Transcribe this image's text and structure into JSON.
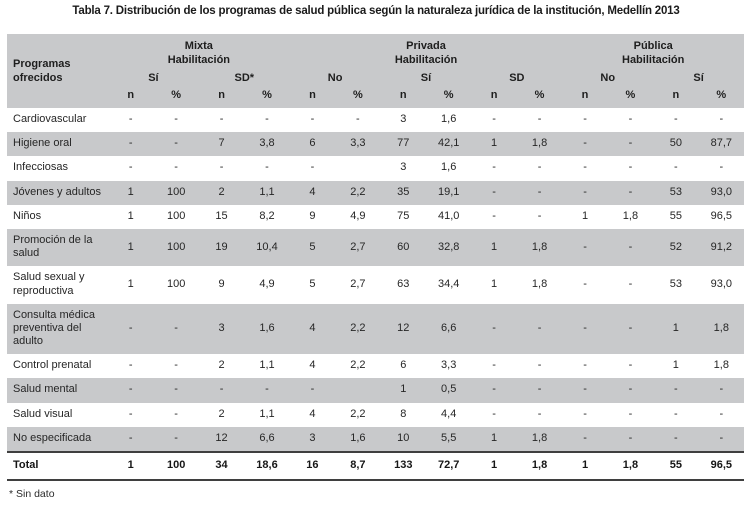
{
  "title": "Tabla 7. Distribución de los programas de salud pública según la naturaleza jurídica de la institución, Medellín 2013",
  "footnote": "* Sin dato",
  "colors": {
    "header_bg": "#c8c9cb",
    "stripe_bg": "#c8c9cb",
    "total_rule": "#3f3f3f",
    "text": "#262626"
  },
  "chart_data": {
    "type": "table",
    "title": "Tabla 7. Distribución de los programas de salud pública según la naturaleza jurídica de la institución, Medellín 2013",
    "corner_header": "Programas ofrecidos",
    "column_groups": [
      {
        "name": "Mixta",
        "qualifier": "Habilitación",
        "span": 4
      },
      {
        "name": "Privada",
        "qualifier": "Habilitación",
        "span": 6
      },
      {
        "name": "Pública",
        "qualifier": "Habilitación",
        "span": 4
      }
    ],
    "subgroups": [
      {
        "label": "Sí",
        "span": 2
      },
      {
        "label": "SD*",
        "span": 2
      },
      {
        "label": "No",
        "span": 2
      },
      {
        "label": "Sí",
        "span": 2
      },
      {
        "label": "SD",
        "span": 2
      },
      {
        "label": "No",
        "span": 2
      },
      {
        "label": "Sí",
        "span": 2
      }
    ],
    "measures": [
      "n",
      "%"
    ],
    "rows": [
      {
        "label": "Cardiovascular",
        "values": [
          "-",
          "-",
          "-",
          "-",
          "-",
          "-",
          "3",
          "1,6",
          "-",
          "-",
          "-",
          "-",
          "-",
          "-"
        ]
      },
      {
        "label": "Higiene oral",
        "values": [
          "-",
          "-",
          "7",
          "3,8",
          "6",
          "3,3",
          "77",
          "42,1",
          "1",
          "1,8",
          "-",
          "-",
          "50",
          "87,7"
        ]
      },
      {
        "label": "Infecciosas",
        "values": [
          "-",
          "-",
          "-",
          "-",
          "-",
          "",
          "3",
          "1,6",
          "-",
          "-",
          "-",
          "-",
          "-",
          "-"
        ]
      },
      {
        "label": "Jóvenes y adultos",
        "values": [
          "1",
          "100",
          "2",
          "1,1",
          "4",
          "2,2",
          "35",
          "19,1",
          "-",
          "-",
          "-",
          "-",
          "53",
          "93,0"
        ]
      },
      {
        "label": "Niños",
        "values": [
          "1",
          "100",
          "15",
          "8,2",
          "9",
          "4,9",
          "75",
          "41,0",
          "-",
          "-",
          "1",
          "1,8",
          "55",
          "96,5"
        ]
      },
      {
        "label": "Promoción de la salud",
        "values": [
          "1",
          "100",
          "19",
          "10,4",
          "5",
          "2,7",
          "60",
          "32,8",
          "1",
          "1,8",
          "-",
          "-",
          "52",
          "91,2"
        ]
      },
      {
        "label": "Salud sexual y reproductiva",
        "values": [
          "1",
          "100",
          "9",
          "4,9",
          "5",
          "2,7",
          "63",
          "34,4",
          "1",
          "1,8",
          "-",
          "-",
          "53",
          "93,0"
        ]
      },
      {
        "label": "Consulta médica preventiva del adulto",
        "values": [
          "-",
          "-",
          "3",
          "1,6",
          "4",
          "2,2",
          "12",
          "6,6",
          "-",
          "-",
          "-",
          "-",
          "1",
          "1,8"
        ]
      },
      {
        "label": "Control prenatal",
        "values": [
          "-",
          "-",
          "2",
          "1,1",
          "4",
          "2,2",
          "6",
          "3,3",
          "-",
          "-",
          "-",
          "-",
          "1",
          "1,8"
        ]
      },
      {
        "label": "Salud mental",
        "values": [
          "-",
          "-",
          "-",
          "-",
          "-",
          "",
          "1",
          "0,5",
          "-",
          "-",
          "-",
          "-",
          "-",
          "-"
        ]
      },
      {
        "label": "Salud visual",
        "values": [
          "-",
          "-",
          "2",
          "1,1",
          "4",
          "2,2",
          "8",
          "4,4",
          "-",
          "-",
          "-",
          "-",
          "-",
          "-"
        ]
      },
      {
        "label": "No especificada",
        "values": [
          "-",
          "-",
          "12",
          "6,6",
          "3",
          "1,6",
          "10",
          "5,5",
          "1",
          "1,8",
          "-",
          "-",
          "-",
          "-"
        ]
      }
    ],
    "total_row": {
      "label": "Total",
      "values": [
        "1",
        "100",
        "34",
        "18,6",
        "16",
        "8,7",
        "133",
        "72,7",
        "1",
        "1,8",
        "1",
        "1,8",
        "55",
        "96,5"
      ]
    }
  }
}
